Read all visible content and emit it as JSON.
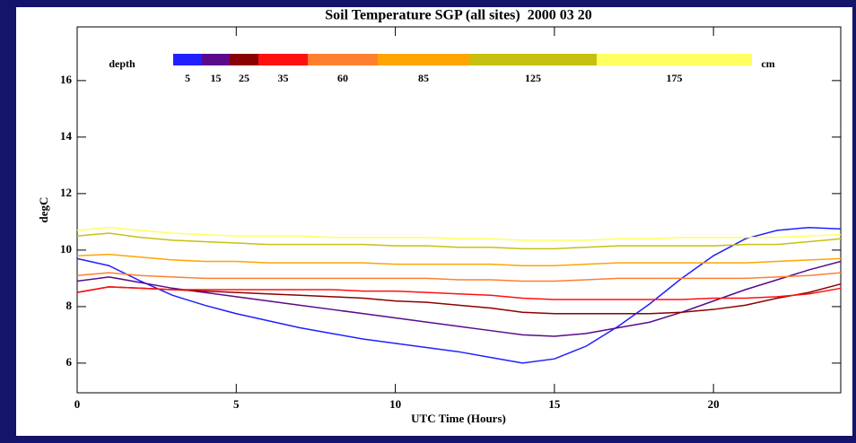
{
  "chart_data": {
    "type": "line",
    "title": "Soil Temperature SGP (all sites)  2000 03 20",
    "xlabel": "UTC Time (Hours)",
    "ylabel": "degC",
    "legend_title": "depth",
    "legend_unit": "cm",
    "x": [
      0,
      1,
      2,
      3,
      4,
      5,
      6,
      7,
      8,
      9,
      10,
      11,
      12,
      13,
      14,
      15,
      16,
      17,
      18,
      19,
      20,
      21,
      22,
      23,
      24
    ],
    "xlim": [
      0,
      24
    ],
    "xticks": [
      0,
      5,
      10,
      15,
      20
    ],
    "ylim": [
      4.95,
      17.9
    ],
    "yticks": [
      6,
      8,
      10,
      12,
      14,
      16
    ],
    "series": [
      {
        "name": "5",
        "color": "#2020ff",
        "values": [
          9.7,
          9.45,
          8.9,
          8.4,
          8.05,
          7.75,
          7.5,
          7.25,
          7.05,
          6.85,
          6.7,
          6.55,
          6.4,
          6.2,
          6.0,
          6.15,
          6.6,
          7.3,
          8.1,
          9.0,
          9.8,
          10.4,
          10.7,
          10.8,
          10.75
        ]
      },
      {
        "name": "15",
        "color": "#5a0a8a",
        "values": [
          8.9,
          9.05,
          8.85,
          8.65,
          8.5,
          8.35,
          8.2,
          8.05,
          7.9,
          7.75,
          7.6,
          7.45,
          7.3,
          7.15,
          7.0,
          6.95,
          7.05,
          7.25,
          7.45,
          7.8,
          8.2,
          8.6,
          8.95,
          9.3,
          9.6
        ]
      },
      {
        "name": "25",
        "color": "#8b0000",
        "values": [
          8.5,
          8.7,
          8.65,
          8.6,
          8.55,
          8.5,
          8.45,
          8.4,
          8.35,
          8.3,
          8.2,
          8.15,
          8.05,
          7.95,
          7.8,
          7.75,
          7.75,
          7.75,
          7.75,
          7.8,
          7.9,
          8.05,
          8.3,
          8.5,
          8.8
        ]
      },
      {
        "name": "35",
        "color": "#ff1010",
        "values": [
          8.5,
          8.7,
          8.65,
          8.6,
          8.6,
          8.6,
          8.6,
          8.6,
          8.6,
          8.55,
          8.55,
          8.5,
          8.45,
          8.4,
          8.3,
          8.25,
          8.25,
          8.25,
          8.25,
          8.25,
          8.3,
          8.3,
          8.35,
          8.45,
          8.65
        ]
      },
      {
        "name": "60",
        "color": "#ff7f30",
        "values": [
          9.1,
          9.2,
          9.1,
          9.05,
          9.0,
          9.0,
          9.0,
          9.0,
          9.0,
          9.0,
          9.0,
          9.0,
          8.95,
          8.95,
          8.9,
          8.9,
          8.95,
          9.0,
          9.0,
          9.0,
          9.0,
          9.0,
          9.05,
          9.1,
          9.2
        ]
      },
      {
        "name": "85",
        "color": "#ffa500",
        "values": [
          9.8,
          9.85,
          9.75,
          9.65,
          9.6,
          9.6,
          9.55,
          9.55,
          9.55,
          9.55,
          9.5,
          9.5,
          9.5,
          9.5,
          9.45,
          9.45,
          9.5,
          9.55,
          9.55,
          9.55,
          9.55,
          9.55,
          9.6,
          9.65,
          9.7
        ]
      },
      {
        "name": "125",
        "color": "#c8c010",
        "values": [
          10.5,
          10.6,
          10.45,
          10.35,
          10.3,
          10.25,
          10.2,
          10.2,
          10.2,
          10.2,
          10.15,
          10.15,
          10.1,
          10.1,
          10.05,
          10.05,
          10.1,
          10.15,
          10.15,
          10.15,
          10.15,
          10.2,
          10.2,
          10.3,
          10.4
        ]
      },
      {
        "name": "175",
        "color": "#ffff60",
        "values": [
          10.7,
          10.8,
          10.7,
          10.6,
          10.55,
          10.5,
          10.5,
          10.5,
          10.45,
          10.45,
          10.45,
          10.45,
          10.4,
          10.4,
          10.35,
          10.35,
          10.35,
          10.4,
          10.4,
          10.45,
          10.45,
          10.45,
          10.45,
          10.5,
          10.55
        ]
      }
    ]
  }
}
